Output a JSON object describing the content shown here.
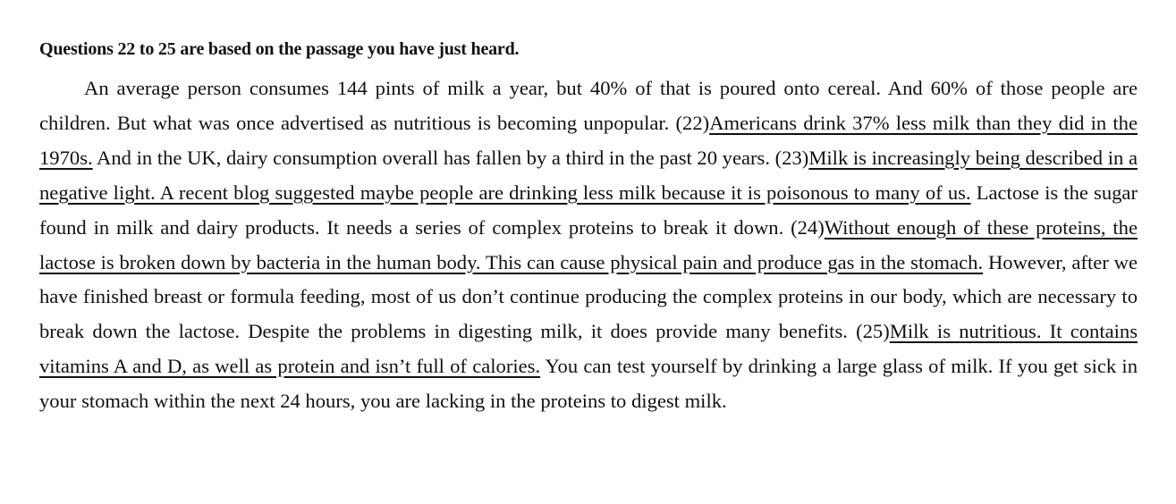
{
  "heading": "Questions 22 to 25 are based on the passage you have just heard.",
  "passage": [
    {
      "text": "An average person consumes 144 pints of milk a year, but 40% of that is poured onto cereal. And 60% of those people are children. But what was once advertised as nutritious is becoming unpopular. ",
      "underline": false
    },
    {
      "text": "(22)",
      "underline": false
    },
    {
      "text": "Americans drink 37% less milk than they did in the 1970s.",
      "underline": true
    },
    {
      "text": " And in the UK, dairy consumption overall has fallen by a third in the past 20 years. ",
      "underline": false
    },
    {
      "text": "(23)",
      "underline": false
    },
    {
      "text": "Milk is increasingly being described in a negative light. A recent blog suggested maybe people are drinking less milk because it is poisonous to many of us.",
      "underline": true
    },
    {
      "text": " Lactose is the sugar found in milk and dairy products. It needs a series of complex proteins to break it down. ",
      "underline": false
    },
    {
      "text": "(24)",
      "underline": false
    },
    {
      "text": "Without enough of these proteins, the lactose is broken down by bacteria in the human body. This can cause physical pain and produce gas in the stomach.",
      "underline": true
    },
    {
      "text": " However, after we have finished breast or formula feeding, most of us don’t continue producing the complex proteins in our body, which are necessary to break down the lactose. Despite the problems in digesting milk, it does provide many benefits. ",
      "underline": false
    },
    {
      "text": "(25)",
      "underline": false
    },
    {
      "text": "Milk is nutritious. It contains vitamins A and D, as well as protein and isn’t full of calories.",
      "underline": true
    },
    {
      "text": " You can test yourself by drinking a large glass of milk. If you get sick in your stomach within the next 24 hours, you are lacking in the proteins to digest milk.",
      "underline": false
    }
  ]
}
